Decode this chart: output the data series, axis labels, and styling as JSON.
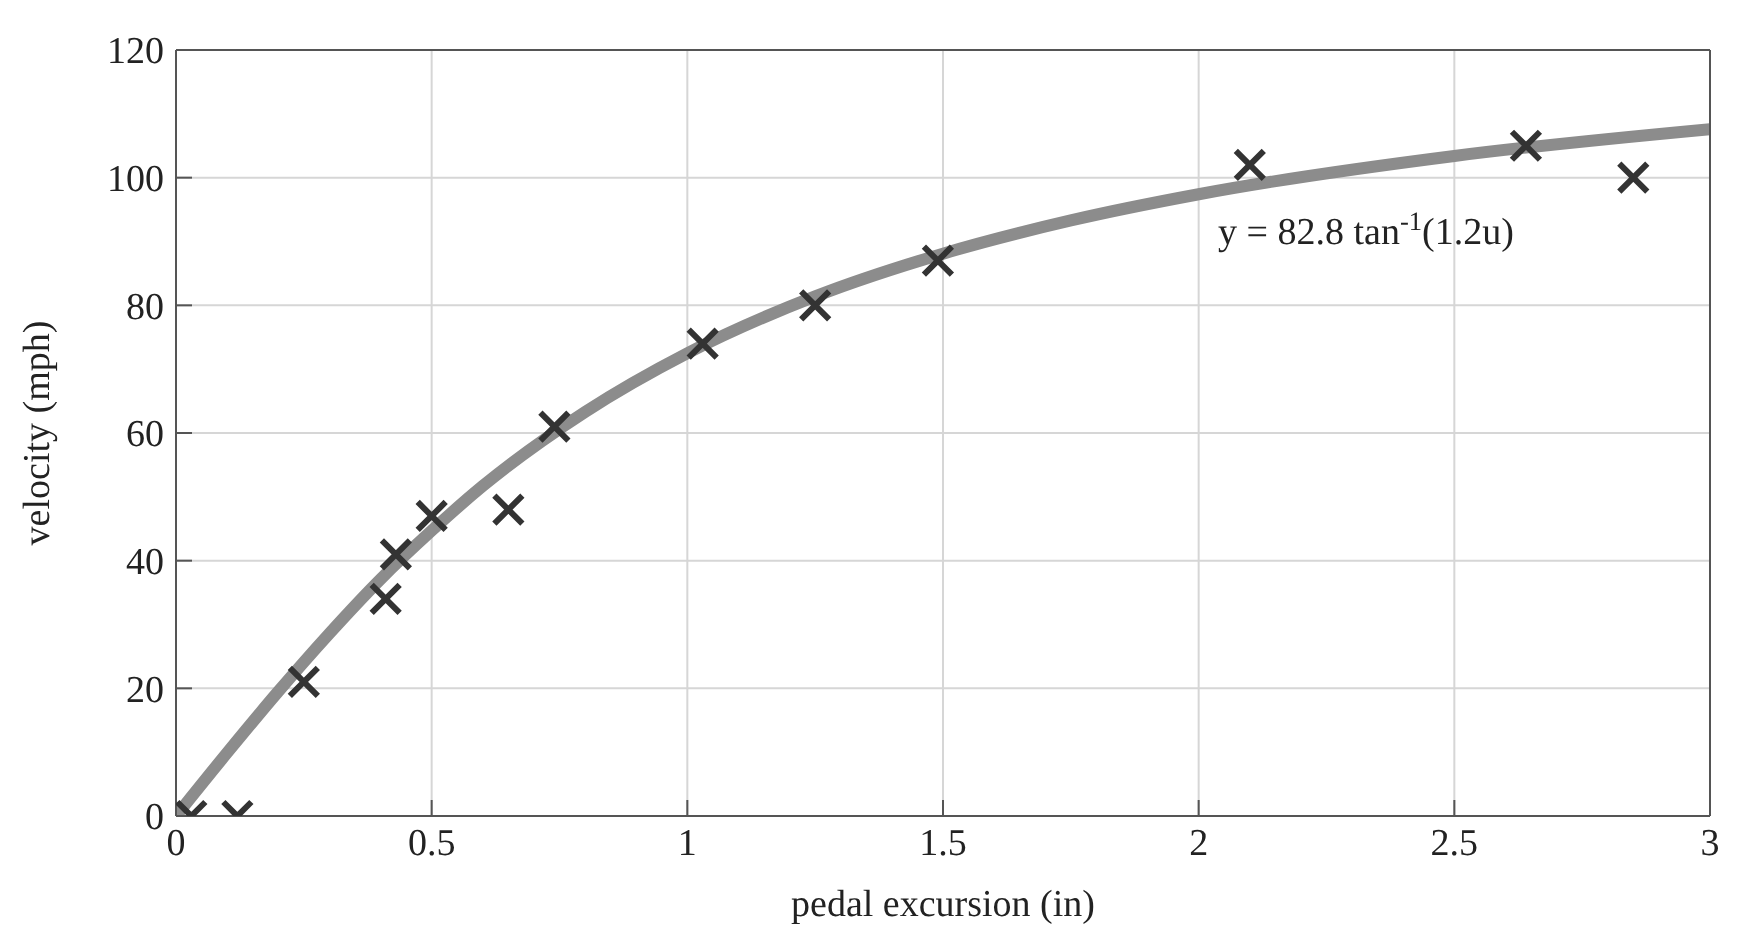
{
  "chart_data": {
    "type": "scatter",
    "xlabel": "pedal excursion (in)",
    "ylabel": "velocity (mph)",
    "xlim": [
      0,
      3
    ],
    "xticks": [
      0,
      0.5,
      1,
      1.5,
      2,
      2.5,
      3
    ],
    "ylim": [
      0,
      120
    ],
    "yticks": [
      0,
      20,
      40,
      60,
      80,
      100,
      120
    ],
    "grid": true,
    "marker": "cross",
    "series": [
      {
        "type": "line",
        "color": "#8c8c8c",
        "marker": "none",
        "line_style": "solid",
        "x": [
          0,
          0.1,
          0.2,
          0.3,
          0.4,
          0.5,
          0.6,
          0.8,
          1,
          1.25,
          1.5,
          1.75,
          2,
          2.5,
          3
        ],
        "values": [
          0,
          9.9,
          19.5,
          28.6,
          37.1,
          44.7,
          51.7,
          63.3,
          72.5,
          81.4,
          88.1,
          93.3,
          97.4,
          103.4,
          107.6
        ]
      },
      {
        "color": "#333333",
        "x": [
          0.03,
          0.12,
          0.25,
          0.41,
          0.43,
          0.5,
          0.65,
          0.74,
          1.03,
          1.25,
          1.49,
          2.1,
          2.64,
          2.85
        ],
        "values": [
          0,
          0,
          21,
          34,
          41,
          47,
          48,
          61,
          74,
          80,
          87,
          102,
          105,
          100
        ]
      }
    ],
    "annotations": [
      "y = 82.8 tan$^{-1}$(1.2u)"
    ]
  }
}
